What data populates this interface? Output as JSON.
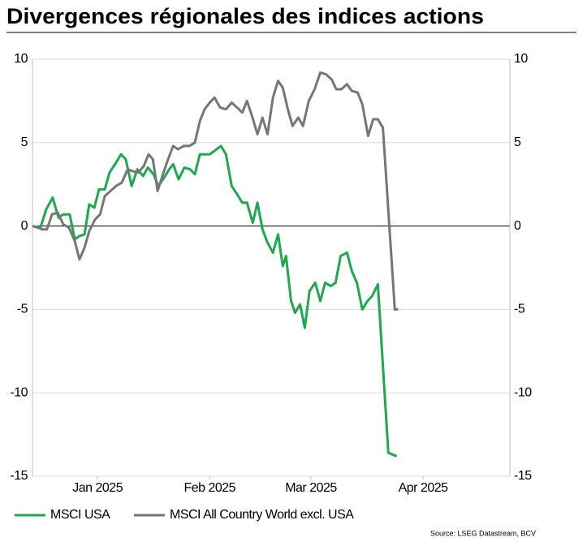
{
  "chart_data": {
    "type": "line",
    "title": "Divergences régionales des indices actions",
    "source": "Source: LSEG Datastream, BCV",
    "xlim": [
      0,
      132
    ],
    "xticks": [
      {
        "value": 18,
        "label": "Jan 2025"
      },
      {
        "value": 49,
        "label": "Feb 2025"
      },
      {
        "value": 77,
        "label": "Mar 2025"
      },
      {
        "value": 108,
        "label": "Apr 2025"
      }
    ],
    "ylim": [
      -15,
      10
    ],
    "yticks": [
      -15,
      -10,
      -5,
      0,
      5,
      10
    ],
    "y2lim": [
      -15,
      10
    ],
    "y2ticks": [
      -15,
      -10,
      -5,
      0,
      5,
      10
    ],
    "grid": true,
    "series": [
      {
        "name": "MSCI USA",
        "color": "#1fa84f",
        "x": [
          0,
          2.2,
          3.8,
          5.6,
          7.2,
          8.5,
          10.3,
          11.7,
          13.0,
          14.4,
          15.7,
          17.1,
          18.4,
          20.0,
          21.3,
          23.1,
          24.5,
          25.8,
          27.4,
          29.0,
          30.6,
          31.9,
          33.5,
          34.8,
          36.4,
          37.8,
          38.9,
          40.4,
          42.0,
          43.6,
          44.9,
          46.3,
          47.6,
          49.0,
          50.3,
          52.1,
          53.5,
          55.1,
          56.6,
          58.0,
          59.3,
          60.9,
          62.2,
          63.6,
          65.0,
          66.5,
          67.9,
          69.2,
          70.1,
          71.5,
          72.6,
          74.0,
          75.3,
          76.6,
          78.2,
          79.6,
          80.9,
          82.5,
          83.8,
          85.2,
          87.0,
          88.3,
          89.7,
          91.2,
          92.6,
          93.9,
          95.5,
          98.4,
          100.7
        ],
        "values": [
          0.0,
          -0.1,
          1.0,
          1.7,
          0.5,
          0.7,
          0.7,
          -0.8,
          -0.6,
          -0.5,
          1.3,
          1.1,
          2.2,
          2.2,
          3.2,
          3.8,
          4.3,
          4.0,
          2.4,
          3.4,
          3.0,
          3.5,
          3.1,
          2.4,
          2.9,
          3.4,
          3.7,
          2.8,
          3.5,
          3.4,
          3.1,
          4.3,
          4.3,
          4.3,
          4.5,
          4.8,
          4.3,
          2.4,
          1.9,
          1.4,
          1.4,
          0.2,
          1.4,
          -0.2,
          -1.0,
          -1.6,
          -0.5,
          -2.4,
          -1.8,
          -4.5,
          -5.2,
          -4.7,
          -6.1,
          -3.9,
          -3.4,
          -4.5,
          -3.4,
          -3.6,
          -3.4,
          -1.8,
          -1.6,
          -2.7,
          -3.4,
          -5.0,
          -4.5,
          -4.2,
          -3.5,
          -13.6,
          -13.8
        ]
      },
      {
        "name": "MSCI All Country World excl. USA",
        "color": "#767676",
        "x": [
          0,
          1.6,
          2.7,
          4.0,
          5.4,
          7.0,
          8.5,
          10.1,
          11.7,
          13.0,
          14.4,
          15.7,
          17.3,
          18.7,
          20.0,
          21.6,
          23.1,
          24.7,
          26.3,
          27.6,
          29.2,
          30.8,
          32.1,
          33.3,
          34.6,
          36.2,
          37.5,
          38.9,
          40.2,
          41.8,
          43.4,
          44.9,
          46.3,
          47.6,
          49.0,
          50.3,
          51.9,
          53.5,
          55.1,
          56.6,
          58.0,
          59.3,
          60.7,
          62.2,
          63.6,
          65.0,
          66.5,
          67.9,
          69.2,
          70.6,
          71.9,
          73.5,
          74.8,
          76.4,
          78.0,
          79.6,
          81.1,
          82.7,
          84.0,
          85.4,
          87.0,
          88.3,
          89.9,
          91.2,
          92.8,
          94.2,
          95.5,
          96.9,
          100.2,
          101.1
        ],
        "values": [
          0.0,
          -0.1,
          -0.2,
          -0.2,
          0.7,
          0.8,
          0.1,
          -0.1,
          -0.9,
          -2.0,
          -1.3,
          -0.3,
          0.4,
          0.7,
          1.8,
          2.1,
          2.4,
          2.6,
          3.4,
          3.3,
          3.2,
          3.6,
          4.3,
          4.0,
          2.1,
          3.2,
          4.0,
          4.8,
          4.6,
          4.8,
          4.8,
          5.0,
          6.3,
          7.0,
          7.4,
          7.7,
          7.1,
          7.0,
          7.4,
          7.1,
          6.8,
          7.5,
          6.6,
          5.5,
          6.5,
          5.5,
          7.7,
          8.7,
          8.3,
          7.0,
          6.0,
          6.5,
          6.0,
          7.5,
          8.2,
          9.2,
          9.1,
          8.8,
          8.2,
          8.2,
          8.5,
          8.1,
          8.0,
          7.3,
          5.4,
          6.4,
          6.4,
          5.9,
          -5.0,
          -5.0
        ]
      }
    ]
  }
}
